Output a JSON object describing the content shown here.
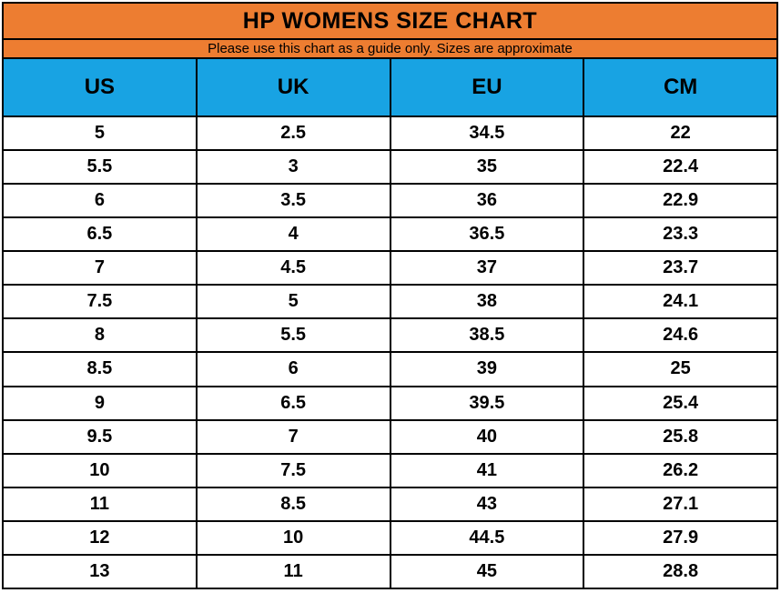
{
  "title": "HP WOMENS SIZE CHART",
  "subtitle": "Please use this chart as a guide only. Sizes are approximate",
  "colors": {
    "title_band": "#ED7D31",
    "header_band": "#18A3E3",
    "border": "#000000",
    "row_background": "#FFFFFF",
    "text": "#000000"
  },
  "chart_data": {
    "type": "table",
    "title": "HP WOMENS SIZE CHART",
    "subtitle": "Please use this chart as a guide only. Sizes are approximate",
    "columns": [
      "US",
      "UK",
      "EU",
      "CM"
    ],
    "rows": [
      [
        "5",
        "2.5",
        "34.5",
        "22"
      ],
      [
        "5.5",
        "3",
        "35",
        "22.4"
      ],
      [
        "6",
        "3.5",
        "36",
        "22.9"
      ],
      [
        "6.5",
        "4",
        "36.5",
        "23.3"
      ],
      [
        "7",
        "4.5",
        "37",
        "23.7"
      ],
      [
        "7.5",
        "5",
        "38",
        "24.1"
      ],
      [
        "8",
        "5.5",
        "38.5",
        "24.6"
      ],
      [
        "8.5",
        "6",
        "39",
        "25"
      ],
      [
        "9",
        "6.5",
        "39.5",
        "25.4"
      ],
      [
        "9.5",
        "7",
        "40",
        "25.8"
      ],
      [
        "10",
        "7.5",
        "41",
        "26.2"
      ],
      [
        "11",
        "8.5",
        "43",
        "27.1"
      ],
      [
        "12",
        "10",
        "44.5",
        "27.9"
      ],
      [
        "13",
        "11",
        "45",
        "28.8"
      ]
    ]
  }
}
